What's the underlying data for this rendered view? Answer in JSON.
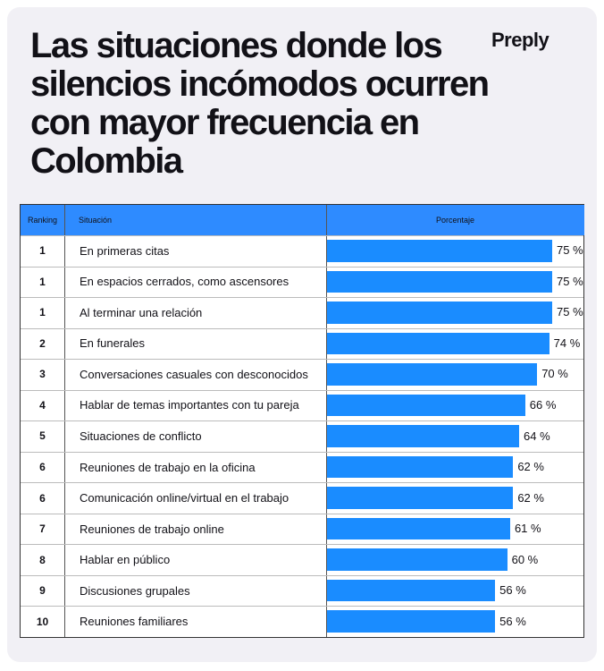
{
  "brand": "Preply",
  "chart_data": {
    "type": "bar",
    "title": "Las situaciones donde los silencios incómodos ocurren con mayor frecuencia en Colombia",
    "columns": [
      "Ranking",
      "Situación",
      "Porcentaje"
    ],
    "ranks": [
      1,
      1,
      1,
      2,
      3,
      4,
      5,
      6,
      6,
      7,
      8,
      9,
      10
    ],
    "categories": [
      "En primeras citas",
      "En espacios cerrados, como ascensores",
      "Al terminar una relación",
      "En funerales",
      "Conversaciones casuales con desconocidos",
      "Hablar de temas importantes con tu pareja",
      "Situaciones de conflicto",
      "Reuniones de trabajo en la oficina",
      "Comunicación online/virtual en el trabajo",
      "Reuniones de trabajo online",
      "Hablar en público",
      "Discusiones grupales",
      "Reuniones familiares"
    ],
    "values": [
      75,
      75,
      75,
      74,
      70,
      66,
      64,
      62,
      62,
      61,
      60,
      56,
      56
    ],
    "value_labels": [
      "75 %",
      "75 %",
      "75 %",
      "74 %",
      "70 %",
      "66 %",
      "64 %",
      "62 %",
      "62 %",
      "61 %",
      "60 %",
      "56 %",
      "56 %"
    ],
    "color": "#1a8cff"
  }
}
